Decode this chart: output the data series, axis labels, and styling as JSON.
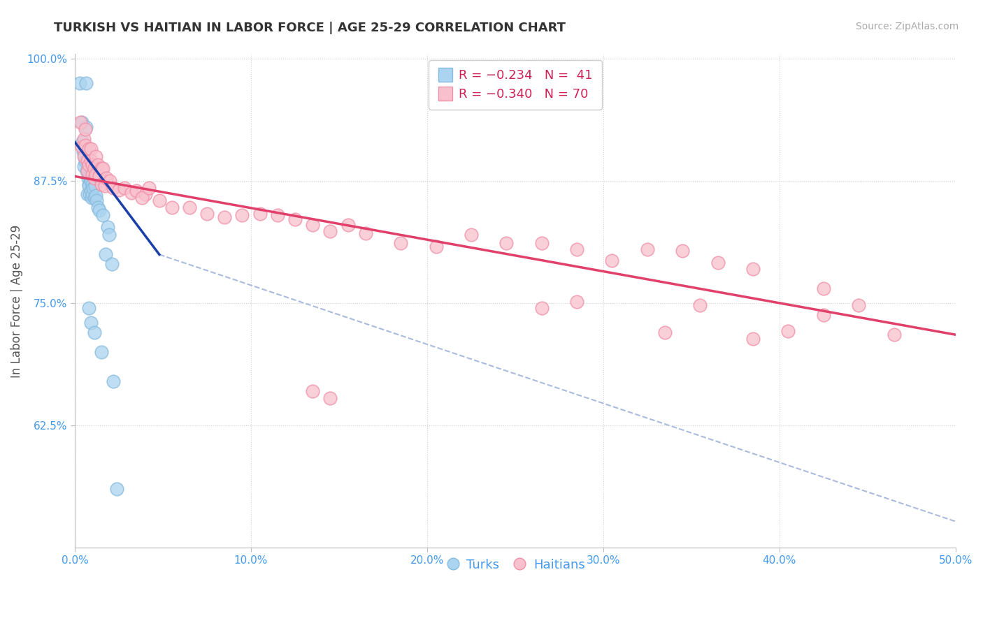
{
  "title": "TURKISH VS HAITIAN IN LABOR FORCE | AGE 25-29 CORRELATION CHART",
  "source": "Source: ZipAtlas.com",
  "ylabel": "In Labor Force | Age 25-29",
  "xlim": [
    0.0,
    0.5
  ],
  "ylim": [
    0.5,
    1.005
  ],
  "xticks": [
    0.0,
    0.1,
    0.2,
    0.3,
    0.4,
    0.5
  ],
  "xticklabels": [
    "0.0%",
    "10.0%",
    "20.0%",
    "30.0%",
    "40.0%",
    "50.0%"
  ],
  "yticks": [
    0.625,
    0.75,
    0.875,
    1.0
  ],
  "yticklabels": [
    "62.5%",
    "75.0%",
    "87.5%",
    "100.0%"
  ],
  "turks_color": "#aad4f0",
  "haitians_color": "#f8c0cc",
  "turks_edge_color": "#88bbdd",
  "haitians_edge_color": "#f090a8",
  "turks_line_color": "#1a3faa",
  "haitians_line_color": "#e0406a",
  "dashed_line_color": "#aabbdd",
  "background_color": "#ffffff",
  "turks_line": [
    [
      0.0,
      0.915
    ],
    [
      0.048,
      0.8
    ]
  ],
  "haitians_line": [
    [
      0.0,
      0.88
    ],
    [
      0.5,
      0.718
    ]
  ],
  "dashed_line": [
    [
      0.048,
      0.8
    ],
    [
      0.5,
      0.527
    ]
  ],
  "turks_points": [
    [
      0.0028,
      0.975
    ],
    [
      0.0062,
      0.975
    ],
    [
      0.0038,
      0.935
    ],
    [
      0.0065,
      0.93
    ],
    [
      0.0045,
      0.915
    ],
    [
      0.0048,
      0.905
    ],
    [
      0.0055,
      0.9
    ],
    [
      0.0052,
      0.89
    ],
    [
      0.006,
      0.908
    ],
    [
      0.0058,
      0.895
    ],
    [
      0.007,
      0.895
    ],
    [
      0.0068,
      0.885
    ],
    [
      0.0075,
      0.878
    ],
    [
      0.0078,
      0.872
    ],
    [
      0.0072,
      0.862
    ],
    [
      0.0082,
      0.88
    ],
    [
      0.008,
      0.87
    ],
    [
      0.0085,
      0.862
    ],
    [
      0.009,
      0.875
    ],
    [
      0.0092,
      0.865
    ],
    [
      0.0095,
      0.858
    ],
    [
      0.01,
      0.872
    ],
    [
      0.0098,
      0.862
    ],
    [
      0.0105,
      0.868
    ],
    [
      0.011,
      0.858
    ],
    [
      0.0115,
      0.87
    ],
    [
      0.012,
      0.86
    ],
    [
      0.0125,
      0.855
    ],
    [
      0.013,
      0.848
    ],
    [
      0.014,
      0.845
    ],
    [
      0.016,
      0.84
    ],
    [
      0.0185,
      0.828
    ],
    [
      0.0195,
      0.82
    ],
    [
      0.0175,
      0.8
    ],
    [
      0.021,
      0.79
    ],
    [
      0.008,
      0.745
    ],
    [
      0.0092,
      0.73
    ],
    [
      0.011,
      0.72
    ],
    [
      0.015,
      0.7
    ],
    [
      0.022,
      0.67
    ],
    [
      0.024,
      0.56
    ]
  ],
  "haitians_points": [
    [
      0.003,
      0.935
    ],
    [
      0.004,
      0.91
    ],
    [
      0.005,
      0.918
    ],
    [
      0.005,
      0.9
    ],
    [
      0.006,
      0.928
    ],
    [
      0.006,
      0.912
    ],
    [
      0.007,
      0.896
    ],
    [
      0.007,
      0.885
    ],
    [
      0.008,
      0.908
    ],
    [
      0.008,
      0.892
    ],
    [
      0.009,
      0.908
    ],
    [
      0.009,
      0.896
    ],
    [
      0.01,
      0.892
    ],
    [
      0.01,
      0.882
    ],
    [
      0.011,
      0.888
    ],
    [
      0.011,
      0.878
    ],
    [
      0.012,
      0.9
    ],
    [
      0.012,
      0.882
    ],
    [
      0.013,
      0.892
    ],
    [
      0.014,
      0.88
    ],
    [
      0.015,
      0.888
    ],
    [
      0.015,
      0.872
    ],
    [
      0.016,
      0.888
    ],
    [
      0.017,
      0.87
    ],
    [
      0.018,
      0.878
    ],
    [
      0.02,
      0.875
    ],
    [
      0.022,
      0.868
    ],
    [
      0.025,
      0.866
    ],
    [
      0.028,
      0.868
    ],
    [
      0.032,
      0.863
    ],
    [
      0.035,
      0.865
    ],
    [
      0.04,
      0.862
    ],
    [
      0.038,
      0.858
    ],
    [
      0.042,
      0.868
    ],
    [
      0.048,
      0.855
    ],
    [
      0.055,
      0.848
    ],
    [
      0.065,
      0.848
    ],
    [
      0.075,
      0.842
    ],
    [
      0.085,
      0.838
    ],
    [
      0.095,
      0.84
    ],
    [
      0.105,
      0.842
    ],
    [
      0.115,
      0.84
    ],
    [
      0.125,
      0.836
    ],
    [
      0.135,
      0.83
    ],
    [
      0.145,
      0.824
    ],
    [
      0.155,
      0.83
    ],
    [
      0.165,
      0.822
    ],
    [
      0.185,
      0.812
    ],
    [
      0.205,
      0.808
    ],
    [
      0.225,
      0.82
    ],
    [
      0.245,
      0.812
    ],
    [
      0.265,
      0.812
    ],
    [
      0.285,
      0.805
    ],
    [
      0.305,
      0.794
    ],
    [
      0.325,
      0.805
    ],
    [
      0.345,
      0.804
    ],
    [
      0.365,
      0.792
    ],
    [
      0.385,
      0.785
    ],
    [
      0.265,
      0.745
    ],
    [
      0.285,
      0.752
    ],
    [
      0.335,
      0.72
    ],
    [
      0.385,
      0.714
    ],
    [
      0.405,
      0.722
    ],
    [
      0.425,
      0.738
    ],
    [
      0.445,
      0.748
    ],
    [
      0.355,
      0.748
    ],
    [
      0.425,
      0.765
    ],
    [
      0.465,
      0.718
    ],
    [
      0.135,
      0.66
    ],
    [
      0.145,
      0.653
    ]
  ],
  "title_fontsize": 13,
  "source_fontsize": 10,
  "tick_fontsize": 11,
  "ylabel_fontsize": 12,
  "legend_fontsize": 13,
  "marker_size": 180
}
